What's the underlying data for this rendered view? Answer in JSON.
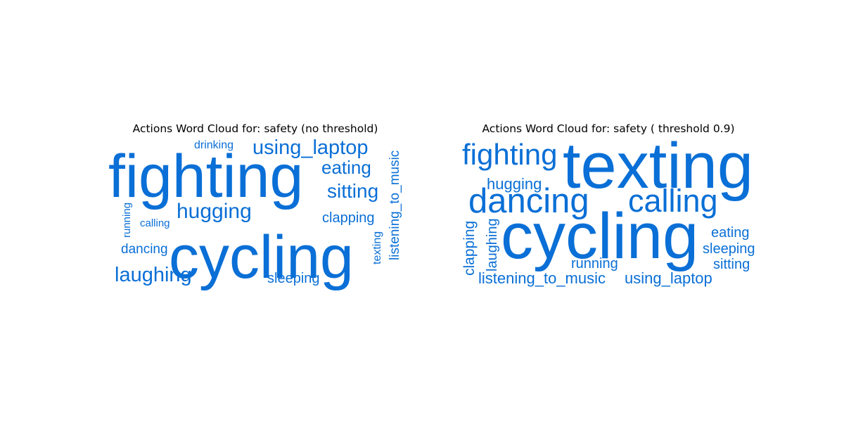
{
  "accent_color": "#0a6fd6",
  "chart_data": [
    {
      "type": "wordcloud",
      "title": "Actions Word Cloud for: safety (no threshold)",
      "words": [
        {
          "text": "fighting",
          "weight": 1.0
        },
        {
          "text": "cycling",
          "weight": 1.0
        },
        {
          "text": "using_laptop",
          "weight": 0.38
        },
        {
          "text": "hugging",
          "weight": 0.35
        },
        {
          "text": "laughing",
          "weight": 0.34
        },
        {
          "text": "sitting",
          "weight": 0.33
        },
        {
          "text": "eating",
          "weight": 0.32
        },
        {
          "text": "clapping",
          "weight": 0.25
        },
        {
          "text": "sleeping",
          "weight": 0.24
        },
        {
          "text": "dancing",
          "weight": 0.23
        },
        {
          "text": "listening_to_music",
          "weight": 0.22
        },
        {
          "text": "drinking",
          "weight": 0.19
        },
        {
          "text": "calling",
          "weight": 0.18
        },
        {
          "text": "running",
          "weight": 0.17
        },
        {
          "text": "texting",
          "weight": 0.17
        }
      ]
    },
    {
      "type": "wordcloud",
      "title": "Actions Word Cloud for: safety ( threshold 0.9)",
      "words": [
        {
          "text": "texting",
          "weight": 1.0
        },
        {
          "text": "cycling",
          "weight": 1.0
        },
        {
          "text": "dancing",
          "weight": 0.55
        },
        {
          "text": "calling",
          "weight": 0.55
        },
        {
          "text": "fighting",
          "weight": 0.5
        },
        {
          "text": "hugging",
          "weight": 0.3
        },
        {
          "text": "listening_to_music",
          "weight": 0.28
        },
        {
          "text": "using_laptop",
          "weight": 0.28
        },
        {
          "text": "clapping",
          "weight": 0.27
        },
        {
          "text": "laughing",
          "weight": 0.27
        },
        {
          "text": "eating",
          "weight": 0.26
        },
        {
          "text": "sleeping",
          "weight": 0.26
        },
        {
          "text": "sitting",
          "weight": 0.26
        },
        {
          "text": "running",
          "weight": 0.25
        }
      ]
    }
  ]
}
